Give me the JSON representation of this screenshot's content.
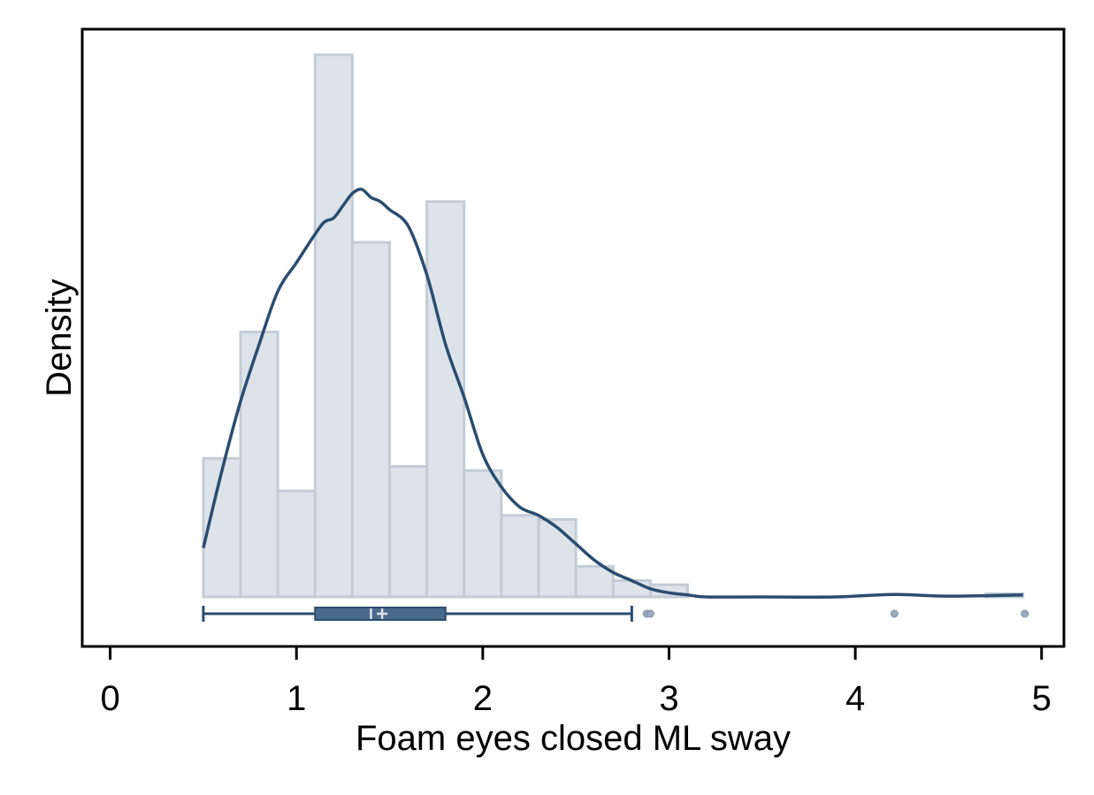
{
  "chart_data": {
    "type": "histogram",
    "title": "",
    "xlabel": "Foam eyes closed ML sway",
    "ylabel": "Density",
    "xlim": [
      -0.15,
      5.12
    ],
    "x_ticks": [
      "0",
      "1",
      "2",
      "3",
      "4",
      "5"
    ],
    "x_tick_values": [
      0,
      1,
      2,
      3,
      4,
      5
    ],
    "y_ticks_shown": false,
    "grid": false,
    "legend": "none",
    "bin_width": 0.2,
    "bins": [
      {
        "start": 0.5,
        "end": 0.7,
        "density": 0.34
      },
      {
        "start": 0.7,
        "end": 0.9,
        "density": 0.65
      },
      {
        "start": 0.9,
        "end": 1.1,
        "density": 0.26
      },
      {
        "start": 1.1,
        "end": 1.3,
        "density": 1.33
      },
      {
        "start": 1.3,
        "end": 1.5,
        "density": 0.87
      },
      {
        "start": 1.5,
        "end": 1.7,
        "density": 0.32
      },
      {
        "start": 1.7,
        "end": 1.9,
        "density": 0.97
      },
      {
        "start": 1.9,
        "end": 2.1,
        "density": 0.31
      },
      {
        "start": 2.1,
        "end": 2.3,
        "density": 0.2
      },
      {
        "start": 2.3,
        "end": 2.5,
        "density": 0.19
      },
      {
        "start": 2.5,
        "end": 2.7,
        "density": 0.075
      },
      {
        "start": 2.7,
        "end": 2.9,
        "density": 0.04
      },
      {
        "start": 2.9,
        "end": 3.1,
        "density": 0.03
      },
      {
        "start": 4.7,
        "end": 4.9,
        "density": 0.008
      }
    ],
    "kde": {
      "x": [
        0.5,
        0.6,
        0.7,
        0.8,
        0.9,
        1.0,
        1.1,
        1.15,
        1.2,
        1.25,
        1.3,
        1.35,
        1.4,
        1.45,
        1.5,
        1.6,
        1.7,
        1.8,
        1.9,
        2.0,
        2.1,
        2.2,
        2.3,
        2.4,
        2.5,
        2.6,
        2.7,
        2.8,
        2.9,
        3.0,
        3.1,
        3.2,
        3.5,
        3.9,
        4.2,
        4.5,
        4.9
      ],
      "density": [
        0.12,
        0.31,
        0.48,
        0.62,
        0.75,
        0.82,
        0.89,
        0.92,
        0.93,
        0.96,
        0.99,
        1.0,
        0.98,
        0.97,
        0.95,
        0.91,
        0.79,
        0.62,
        0.49,
        0.35,
        0.27,
        0.22,
        0.2,
        0.17,
        0.13,
        0.09,
        0.06,
        0.04,
        0.02,
        0.01,
        0.005,
        0.0,
        0.0,
        0.0,
        0.006,
        0.002,
        0.005
      ]
    },
    "boxplot": {
      "whisker_low": 0.5,
      "q1": 1.1,
      "median": 1.4,
      "mean": 1.46,
      "q3": 1.8,
      "whisker_high": 2.8,
      "outliers": [
        2.88,
        2.9,
        4.21,
        4.91
      ]
    },
    "colors": {
      "bar_fill": "#dde3ea",
      "bar_stroke": "#c3ccd6",
      "kde_line": "#2b4c6f",
      "box_fill": "#4a6a8c",
      "box_line": "#2b4c6f",
      "outlier": "#9aaabb"
    }
  }
}
